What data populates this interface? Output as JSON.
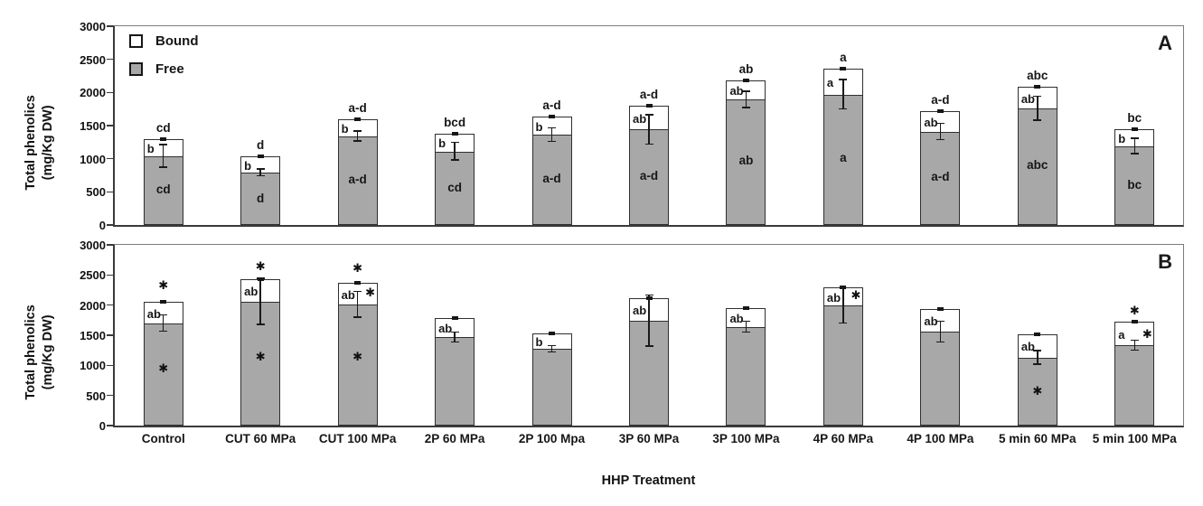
{
  "figure": {
    "y_axis_title_line1": "Total phenolics",
    "y_axis_title_line2": "(mg/Kg DW)",
    "x_axis_title": "HHP Treatment",
    "panel_a_label": "A",
    "panel_b_label": "B",
    "legend": {
      "bound_label": "Bound",
      "free_label": "Free"
    },
    "colors": {
      "free_fill": "#a8a8a8",
      "bound_fill": "#ffffff",
      "bar_border": "#2f2f2f",
      "frame": "#7c7c7c",
      "error_bar": "#1a1a1a"
    }
  },
  "chart_data": [
    {
      "type": "bar",
      "stacked": true,
      "panel": "A",
      "ylabel": "Total phenolics (mg/Kg DW)",
      "xlabel": "HHP Treatment",
      "ylim": [
        0,
        3000
      ],
      "yticks": [
        0,
        500,
        1000,
        1500,
        2000,
        2500,
        3000
      ],
      "legend_position": "upper-left",
      "categories": [
        "Control",
        "CUT 60 MPa",
        "CUT 100 MPa",
        "2P 60 MPa",
        "2P 100 Mpa",
        "3P 60 MPa",
        "3P 100 MPa",
        "4P 60 MPa",
        "4P 100 MPa",
        "5 min 60 MPa",
        "5 min 100 MPa"
      ],
      "series": [
        {
          "name": "Free",
          "values": [
            1040,
            790,
            1340,
            1110,
            1360,
            1440,
            1890,
            1970,
            1410,
            1760,
            1190
          ]
        },
        {
          "name": "Bound",
          "values": [
            260,
            240,
            250,
            270,
            270,
            360,
            290,
            390,
            310,
            320,
            260
          ]
        }
      ],
      "totals": [
        1300,
        1030,
        1590,
        1380,
        1630,
        1800,
        2180,
        2360,
        1720,
        2080,
        1450
      ],
      "error_free": [
        180,
        60,
        80,
        140,
        110,
        230,
        130,
        230,
        130,
        190,
        120
      ],
      "labels_above": [
        "cd",
        "d",
        "a-d",
        "bcd",
        "a-d",
        "a-d",
        "ab",
        "a",
        "a-d",
        "abc",
        "bc"
      ],
      "labels_bound": [
        "b",
        "b",
        "b",
        "b",
        "b",
        "ab",
        "ab",
        "a",
        "ab",
        "ab",
        "b"
      ],
      "labels_free": [
        "cd",
        "d",
        "a-d",
        "cd",
        "a-d",
        "a-d",
        "ab",
        "a",
        "a-d",
        "abc",
        "bc"
      ],
      "stars": [
        [],
        [],
        [],
        [],
        [],
        [],
        [],
        [],
        [],
        [],
        []
      ]
    },
    {
      "type": "bar",
      "stacked": true,
      "panel": "B",
      "ylabel": "Total phenolics (mg/Kg DW)",
      "xlabel": "HHP Treatment",
      "ylim": [
        0,
        3000
      ],
      "yticks": [
        0,
        500,
        1000,
        1500,
        2000,
        2500,
        3000
      ],
      "legend_position": "none",
      "categories": [
        "Control",
        "CUT 60 MPa",
        "CUT 100 MPa",
        "2P 60 MPa",
        "2P 100 Mpa",
        "3P 60 MPa",
        "3P 100 MPa",
        "4P 60 MPa",
        "4P 100 MPa",
        "5 min 60 MPa",
        "5 min 100 MPa"
      ],
      "series": [
        {
          "name": "Free",
          "values": [
            1700,
            2060,
            2010,
            1470,
            1270,
            1740,
            1640,
            1990,
            1560,
            1130,
            1330
          ]
        },
        {
          "name": "Bound",
          "values": [
            350,
            370,
            360,
            310,
            260,
            380,
            310,
            310,
            370,
            390,
            400
          ]
        }
      ],
      "totals": [
        2050,
        2430,
        2370,
        1780,
        1530,
        2120,
        1950,
        2300,
        1930,
        1520,
        1730
      ],
      "error_free": [
        140,
        390,
        220,
        90,
        60,
        430,
        100,
        300,
        180,
        120,
        90
      ],
      "labels_above": [
        "",
        "",
        "",
        "",
        "",
        "",
        "",
        "",
        "",
        "",
        ""
      ],
      "labels_bound": [
        "ab",
        "ab",
        "ab",
        "ab",
        "b",
        "ab",
        "ab",
        "ab",
        "ab",
        "ab",
        "a"
      ],
      "labels_free": [
        "",
        "",
        "",
        "",
        "",
        "",
        "",
        "",
        "",
        "",
        ""
      ],
      "stars": [
        [
          {
            "v": 2310,
            "dx": 0
          },
          {
            "v": 930,
            "dx": 0
          }
        ],
        [
          {
            "v": 2620,
            "dx": 0
          },
          {
            "v": 1130,
            "dx": 0
          }
        ],
        [
          {
            "v": 2600,
            "dx": 0
          },
          {
            "v": 2190,
            "dx": 14
          },
          {
            "v": 1130,
            "dx": 0
          }
        ],
        [],
        [],
        [],
        [],
        [
          {
            "v": 2150,
            "dx": 14
          }
        ],
        [],
        [
          {
            "v": 560,
            "dx": 0
          }
        ],
        [
          {
            "v": 1890,
            "dx": 0
          },
          {
            "v": 1500,
            "dx": 14
          }
        ]
      ]
    }
  ]
}
